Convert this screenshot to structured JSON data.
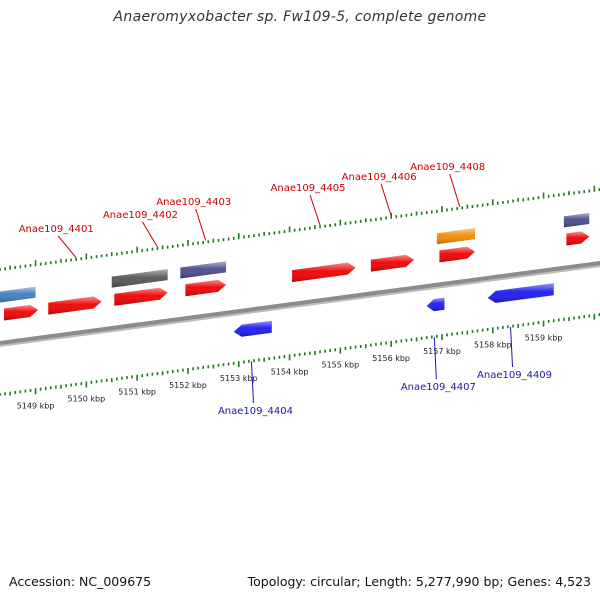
{
  "title": "Anaeromyxobacter sp. Fw109-5, complete genome",
  "footer": {
    "accession": "Accession: NC_009675",
    "summary": "Topology: circular; Length: 5,277,990 bp; Genes: 4,523"
  },
  "colors": {
    "backbone": "#8c8c8c",
    "tick": "#1e7a1e",
    "top_label": "#cc0000",
    "bottom_label": "#1a1aaa",
    "red": "#ee0000",
    "blue": "#1a1aee",
    "gray": "#555555",
    "purple": "#4b4a8c",
    "steelblue": "#3f7fbf",
    "orange": "#f08c00"
  },
  "scale": {
    "unit": "kbp",
    "ticks": [
      "5149 kbp",
      "5150 kbp",
      "5151 kbp",
      "5152 kbp",
      "5153 kbp",
      "5154 kbp",
      "5155 kbp",
      "5156 kbp",
      "5157 kbp",
      "5158 kbp",
      "5159 kbp"
    ]
  },
  "genes": {
    "forward": [
      {
        "start": 5148.38,
        "end": 5149.05,
        "color": "red"
      },
      {
        "start": 5149.25,
        "end": 5150.3,
        "color": "red"
      },
      {
        "start": 5150.55,
        "end": 5151.6,
        "color": "red"
      },
      {
        "start": 5151.95,
        "end": 5152.75,
        "color": "red"
      },
      {
        "start": 5154.05,
        "end": 5155.3,
        "color": "red"
      },
      {
        "start": 5155.6,
        "end": 5156.45,
        "color": "red"
      },
      {
        "start": 5156.95,
        "end": 5157.65,
        "color": "red"
      },
      {
        "start": 5159.45,
        "end": 5159.9,
        "color": "red"
      }
    ],
    "reverse": [
      {
        "start": 5152.9,
        "end": 5153.65,
        "color": "blue"
      },
      {
        "start": 5156.7,
        "end": 5157.05,
        "color": "blue"
      },
      {
        "start": 5157.9,
        "end": 5159.2,
        "color": "blue"
      }
    ],
    "other_top": [
      {
        "start": 5148.3,
        "end": 5149.0,
        "color": "steelblue"
      },
      {
        "start": 5150.5,
        "end": 5151.6,
        "color": "gray"
      },
      {
        "start": 5151.85,
        "end": 5152.75,
        "color": "purple"
      },
      {
        "start": 5156.9,
        "end": 5157.65,
        "color": "orange"
      },
      {
        "start": 5159.4,
        "end": 5159.9,
        "color": "purple"
      }
    ]
  },
  "labels_top": [
    {
      "text": "Anae109_4401",
      "pos": 5149.8
    },
    {
      "text": "Anae109_4402",
      "pos": 5151.4
    },
    {
      "text": "Anae109_4403",
      "pos": 5152.35
    },
    {
      "text": "Anae109_4405",
      "pos": 5154.6
    },
    {
      "text": "Anae109_4406",
      "pos": 5156.0
    },
    {
      "text": "Anae109_4408",
      "pos": 5157.35
    }
  ],
  "labels_bottom": [
    {
      "text": "Anae109_4404",
      "pos": 5153.25
    },
    {
      "text": "Anae109_4407",
      "pos": 5156.85
    },
    {
      "text": "Anae109_4409",
      "pos": 5158.35
    }
  ]
}
